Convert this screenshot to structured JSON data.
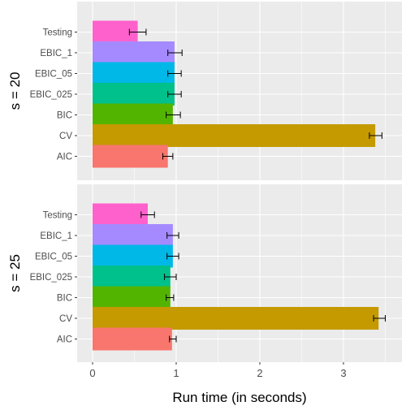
{
  "chart_data": {
    "type": "bar",
    "orientation": "horizontal",
    "xlabel": "Run time (in seconds)",
    "ylabel": "",
    "xlim": [
      -0.2,
      3.6
    ],
    "x_ticks": [
      "0",
      "1",
      "2",
      "3"
    ],
    "x_tick_values": [
      0,
      1,
      2,
      3
    ],
    "grid": true,
    "legend": "none",
    "categories": [
      "Testing",
      "EBIC_1",
      "EBIC_05",
      "EBIC_025",
      "BIC",
      "CV",
      "AIC"
    ],
    "colors": {
      "Testing": "#FF61CC",
      "EBIC_1": "#A58AFF",
      "EBIC_05": "#00B8E7",
      "EBIC_025": "#00C08B",
      "BIC": "#53B400",
      "CV": "#C49A00",
      "AIC": "#F8766D"
    },
    "panels": [
      {
        "label": "s = 20",
        "values": [
          0.54,
          0.98,
          0.98,
          0.98,
          0.96,
          3.38,
          0.9
        ],
        "err_low": [
          0.44,
          0.9,
          0.9,
          0.9,
          0.88,
          3.31,
          0.84
        ],
        "err_high": [
          0.64,
          1.07,
          1.06,
          1.06,
          1.05,
          3.46,
          0.96
        ]
      },
      {
        "label": "s = 25",
        "values": [
          0.66,
          0.96,
          0.96,
          0.93,
          0.93,
          3.42,
          0.95
        ],
        "err_low": [
          0.58,
          0.89,
          0.89,
          0.86,
          0.88,
          3.36,
          0.92
        ],
        "err_high": [
          0.74,
          1.03,
          1.03,
          1.0,
          0.97,
          3.5,
          1.0
        ]
      }
    ]
  }
}
